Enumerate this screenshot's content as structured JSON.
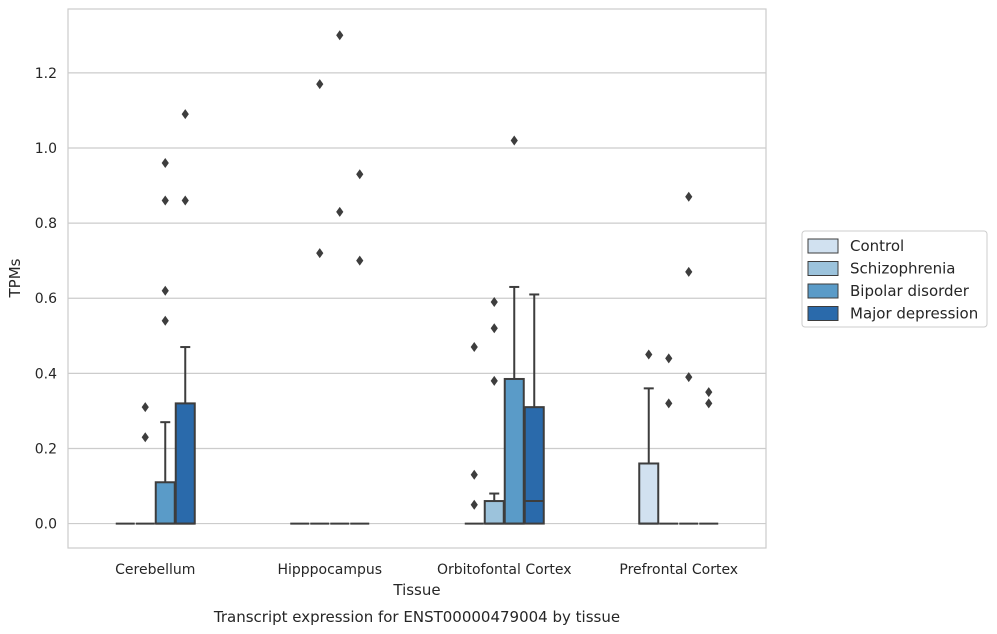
{
  "chart_data": {
    "type": "boxplot",
    "title": "",
    "caption": "Transcript expression for ENST00000479004 by tissue",
    "xlabel": "Tissue",
    "ylabel": "TPMs",
    "ylim": [
      -0.065,
      1.37
    ],
    "yticks": [
      0.0,
      0.2,
      0.4,
      0.6,
      0.8,
      1.0,
      1.2
    ],
    "ytick_labels": [
      "0.0",
      "0.2",
      "0.4",
      "0.6",
      "0.8",
      "1.0",
      "1.2"
    ],
    "grid": "horizontal",
    "legend_position": "right",
    "categories": [
      "Cerebellum",
      "Hipppocampus",
      "Orbitofontal Cortex",
      "Prefrontal Cortex"
    ],
    "series": [
      {
        "name": "Control",
        "color": "#d1e1f0",
        "boxes": [
          {
            "q1": 0,
            "median": 0,
            "q3": 0,
            "whislo": 0,
            "whishi": 0,
            "fliers": []
          },
          {
            "q1": 0,
            "median": 0,
            "q3": 0,
            "whislo": 0,
            "whishi": 0,
            "fliers": []
          },
          {
            "q1": 0,
            "median": 0,
            "q3": 0,
            "whislo": 0,
            "whishi": 0,
            "fliers": [
              0.05,
              0.13,
              0.47
            ]
          },
          {
            "q1": 0,
            "median": 0,
            "q3": 0.16,
            "whislo": 0,
            "whishi": 0.36,
            "fliers": [
              0.45
            ]
          }
        ]
      },
      {
        "name": "Schizophrenia",
        "color": "#9cc3dc",
        "boxes": [
          {
            "q1": 0,
            "median": 0,
            "q3": 0,
            "whislo": 0,
            "whishi": 0,
            "fliers": [
              0.23,
              0.31
            ]
          },
          {
            "q1": 0,
            "median": 0,
            "q3": 0,
            "whislo": 0,
            "whishi": 0,
            "fliers": [
              0.72,
              1.17
            ]
          },
          {
            "q1": 0,
            "median": 0,
            "q3": 0.06,
            "whislo": 0,
            "whishi": 0.08,
            "fliers": [
              0.38,
              0.52,
              0.59
            ]
          },
          {
            "q1": 0,
            "median": 0,
            "q3": 0,
            "whislo": 0,
            "whishi": 0,
            "fliers": [
              0.32,
              0.44
            ]
          }
        ]
      },
      {
        "name": "Bipolar disorder",
        "color": "#5a9bc8",
        "boxes": [
          {
            "q1": 0,
            "median": 0,
            "q3": 0.11,
            "whislo": 0,
            "whishi": 0.27,
            "fliers": [
              0.54,
              0.62,
              0.86,
              0.96
            ]
          },
          {
            "q1": 0,
            "median": 0,
            "q3": 0,
            "whislo": 0,
            "whishi": 0,
            "fliers": [
              0.83,
              1.3
            ]
          },
          {
            "q1": 0,
            "median": 0,
            "q3": 0.385,
            "whislo": 0,
            "whishi": 0.63,
            "fliers": [
              1.02
            ]
          },
          {
            "q1": 0,
            "median": 0,
            "q3": 0,
            "whislo": 0,
            "whishi": 0,
            "fliers": [
              0.39,
              0.67,
              0.87
            ]
          }
        ]
      },
      {
        "name": "Major depression",
        "color": "#2a6aab",
        "boxes": [
          {
            "q1": 0,
            "median": 0,
            "q3": 0.32,
            "whislo": 0,
            "whishi": 0.47,
            "fliers": [
              0.86,
              1.09
            ]
          },
          {
            "q1": 0,
            "median": 0,
            "q3": 0,
            "whislo": 0,
            "whishi": 0,
            "fliers": [
              0.7,
              0.93
            ]
          },
          {
            "q1": 0,
            "median": 0.06,
            "q3": 0.31,
            "whislo": 0,
            "whishi": 0.61,
            "fliers": []
          },
          {
            "q1": 0,
            "median": 0,
            "q3": 0,
            "whislo": 0,
            "whishi": 0,
            "fliers": [
              0.32,
              0.35
            ]
          }
        ]
      }
    ]
  }
}
